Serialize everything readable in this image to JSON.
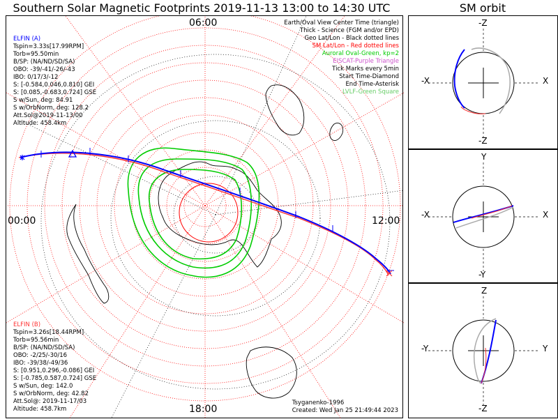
{
  "title": "Southern Solar Magnetic Footprints 2019-11-13 13:00 to 14:30 UTC",
  "sm_orbit_title": "SM orbit",
  "clock_labels": {
    "top": "06:00",
    "left": "00:00",
    "right": "12:00",
    "bottom": "18:00"
  },
  "elfin_a": {
    "name": "ELFIN (A)",
    "color": "#0000ff",
    "lines": [
      "Tspin=3.33s[17.99RPM]",
      "Torb=95.50min",
      "B/SP: (NA/ND/SD/SA)",
      "OBO: -39/-41/-26/-43",
      "IBO: 0/17/3/-12",
      "S: [-0.584,0.046,0.810] GEI",
      "S: [0.085,-0.683,0.724] GSE",
      "S w/Sun, deg: 84.91",
      "S w/OrbNorm, deg: 128.2",
      "Att.Sol@2019-11-13/00",
      "Altitude: 458.4km"
    ]
  },
  "elfin_b": {
    "name": "ELFIN (B)",
    "color": "#ff3333",
    "lines": [
      "Tspin=3.26s[18.44RPM]",
      "Torb=95.56min",
      "B/SP: (NA/ND/SD/SA)",
      "OBO: -2/25/-30/16",
      "IBO: -39/38/-49/36",
      "S: [0.951,0.296,-0.086] GEI",
      "S: [-0.785,0.587,0.724] GSE",
      "S w/Sun, deg: 142.0",
      "S w/OrbNorm, deg: 42.82",
      "Att.Sol@: 2019-11-17/03",
      "Altitude: 458.7km"
    ]
  },
  "legend": [
    {
      "text": "Earth/Oval View Center Time (triangle)",
      "color": "#000000"
    },
    {
      "text": "Thick - Science (FGM and/or EPD)",
      "color": "#000000"
    },
    {
      "text": "Geo Lat/Lon - Black dotted lines",
      "color": "#000000"
    },
    {
      "text": "SM Lat/Lon - Red dotted lines",
      "color": "#ff0000"
    },
    {
      "text": "Auroral Oval-Green, kp=2",
      "color": "#00cc00"
    },
    {
      "text": "EISCAT-Purple Triangle",
      "color": "#cc55cc"
    },
    {
      "text": "Tick Marks every 5min",
      "color": "#000000"
    },
    {
      "text": "Start Time-Diamond",
      "color": "#000000"
    },
    {
      "text": "End Time-Asterisk",
      "color": "#000000"
    },
    {
      "text": "LVLF-Green Square",
      "color": "#66cc66"
    }
  ],
  "credit": {
    "author": "Tsyganenko-1996",
    "created": "Created: Wed Jan 25 21:49:44 2023"
  },
  "panels": [
    {
      "top": "-Z",
      "bottom": "-Z",
      "left": "-X",
      "right": "X"
    },
    {
      "top": "Y",
      "bottom": "-Y",
      "left": "-X",
      "right": "X"
    },
    {
      "top": "Z",
      "bottom": "-Z",
      "left": "-Y",
      "right": "Y"
    }
  ],
  "colors": {
    "elfin_a": "#0000ff",
    "elfin_b": "#ff3333",
    "auroral_oval": "#00cc00",
    "sm_grid": "#ff0000",
    "geo_grid": "#000000",
    "background": "#ffffff"
  }
}
